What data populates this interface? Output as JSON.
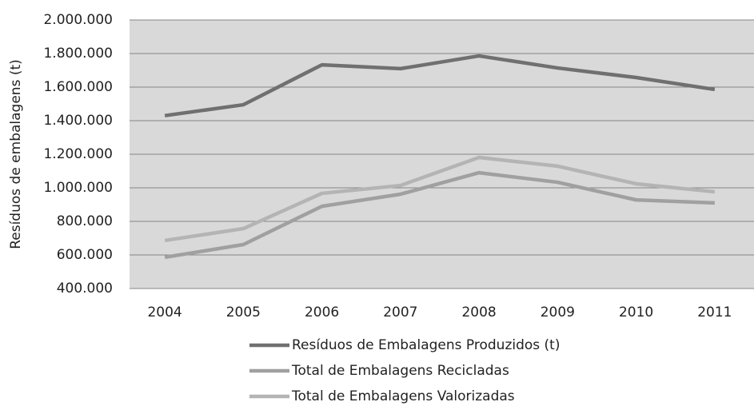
{
  "chart_data": {
    "type": "line",
    "y_label": "Resíduos de embalagens (t)",
    "categories": [
      "2004",
      "2005",
      "2006",
      "2007",
      "2008",
      "2009",
      "2010",
      "2011"
    ],
    "series": [
      {
        "name": "Resíduos de Embalagens Produzidos (t)",
        "color": "#707070",
        "values": [
          1430000,
          1495000,
          1733000,
          1710000,
          1786000,
          1714000,
          1657000,
          1586000
        ]
      },
      {
        "name": "Total de Embalagens Recicladas",
        "color": "#a0a0a0",
        "values": [
          586000,
          662000,
          890000,
          962000,
          1090000,
          1033000,
          928000,
          910000
        ]
      },
      {
        "name": "Total de Embalagens Valorizadas",
        "color": "#b4b4b4",
        "values": [
          686000,
          757000,
          967000,
          1014000,
          1181000,
          1129000,
          1024000,
          976000
        ]
      }
    ],
    "ylim": [
      400000,
      2000000
    ],
    "yticks": [
      {
        "value": 400000,
        "label": "400.000"
      },
      {
        "value": 600000,
        "label": "600.000"
      },
      {
        "value": 800000,
        "label": "800.000"
      },
      {
        "value": 1000000,
        "label": "1.000.000"
      },
      {
        "value": 1200000,
        "label": "1.200.000"
      },
      {
        "value": 1400000,
        "label": "1.400.000"
      },
      {
        "value": 1600000,
        "label": "1.600.000"
      },
      {
        "value": 1800000,
        "label": "1.800.000"
      },
      {
        "value": 2000000,
        "label": "2.000.000"
      }
    ],
    "grid": true
  }
}
